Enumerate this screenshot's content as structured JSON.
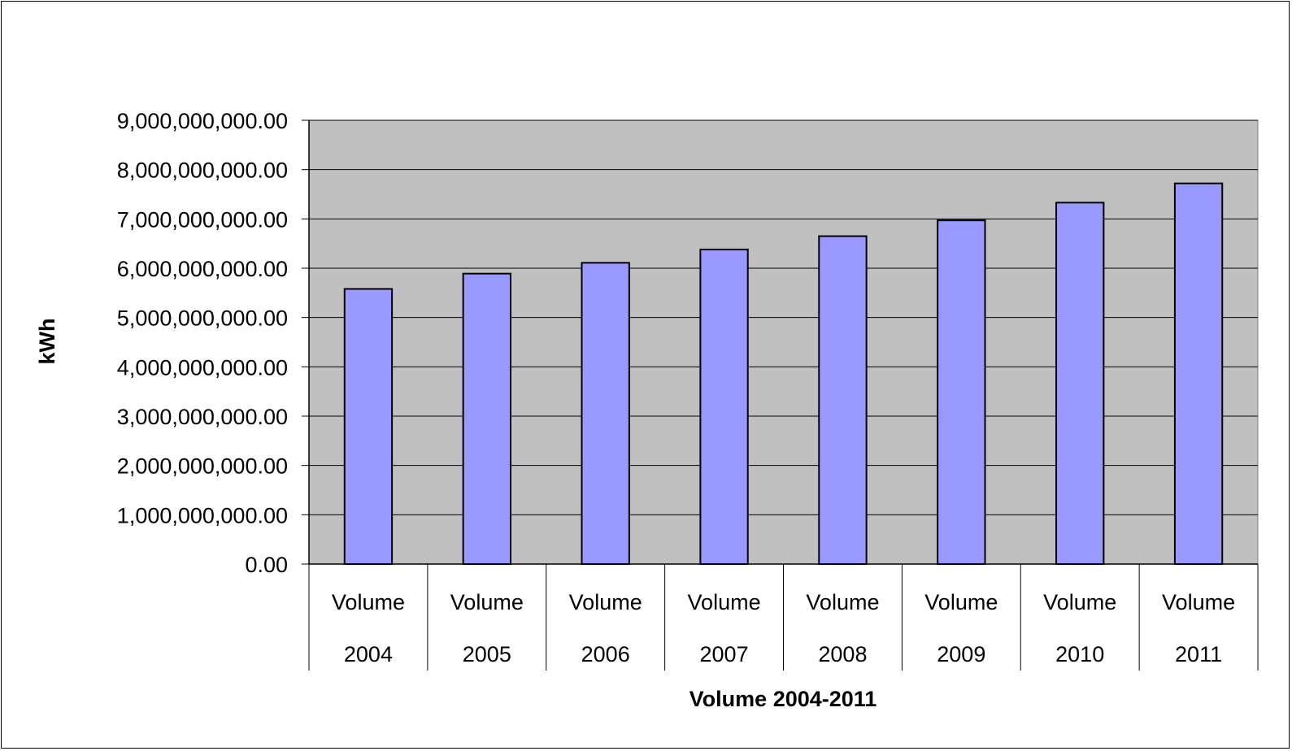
{
  "chart_data": {
    "type": "bar",
    "title": "",
    "xlabel": "Volume 2004-2011",
    "ylabel": "kWh",
    "categories": [
      [
        "Volume",
        "2004"
      ],
      [
        "Volume",
        "2005"
      ],
      [
        "Volume",
        "2006"
      ],
      [
        "Volume",
        "2007"
      ],
      [
        "Volume",
        "2008"
      ],
      [
        "Volume",
        "2009"
      ],
      [
        "Volume",
        "2010"
      ],
      [
        "Volume",
        "2011"
      ]
    ],
    "values": [
      5580000000,
      5890000000,
      6110000000,
      6380000000,
      6650000000,
      6970000000,
      7330000000,
      7720000000
    ],
    "ylim": [
      0,
      9000000000
    ],
    "yticks": [
      0,
      1000000000,
      2000000000,
      3000000000,
      4000000000,
      5000000000,
      6000000000,
      7000000000,
      8000000000,
      9000000000
    ],
    "ytick_labels": [
      "0.00",
      "1,000,000,000.00",
      "2,000,000,000.00",
      "3,000,000,000.00",
      "4,000,000,000.00",
      "5,000,000,000.00",
      "6,000,000,000.00",
      "7,000,000,000.00",
      "8,000,000,000.00",
      "9,000,000,000.00"
    ],
    "grid": true,
    "legend": "none",
    "colors": {
      "bar_fill": "#9999ff",
      "bar_stroke": "#000000",
      "plot_background": "#c0c0c0",
      "gridline": "#000000"
    }
  }
}
